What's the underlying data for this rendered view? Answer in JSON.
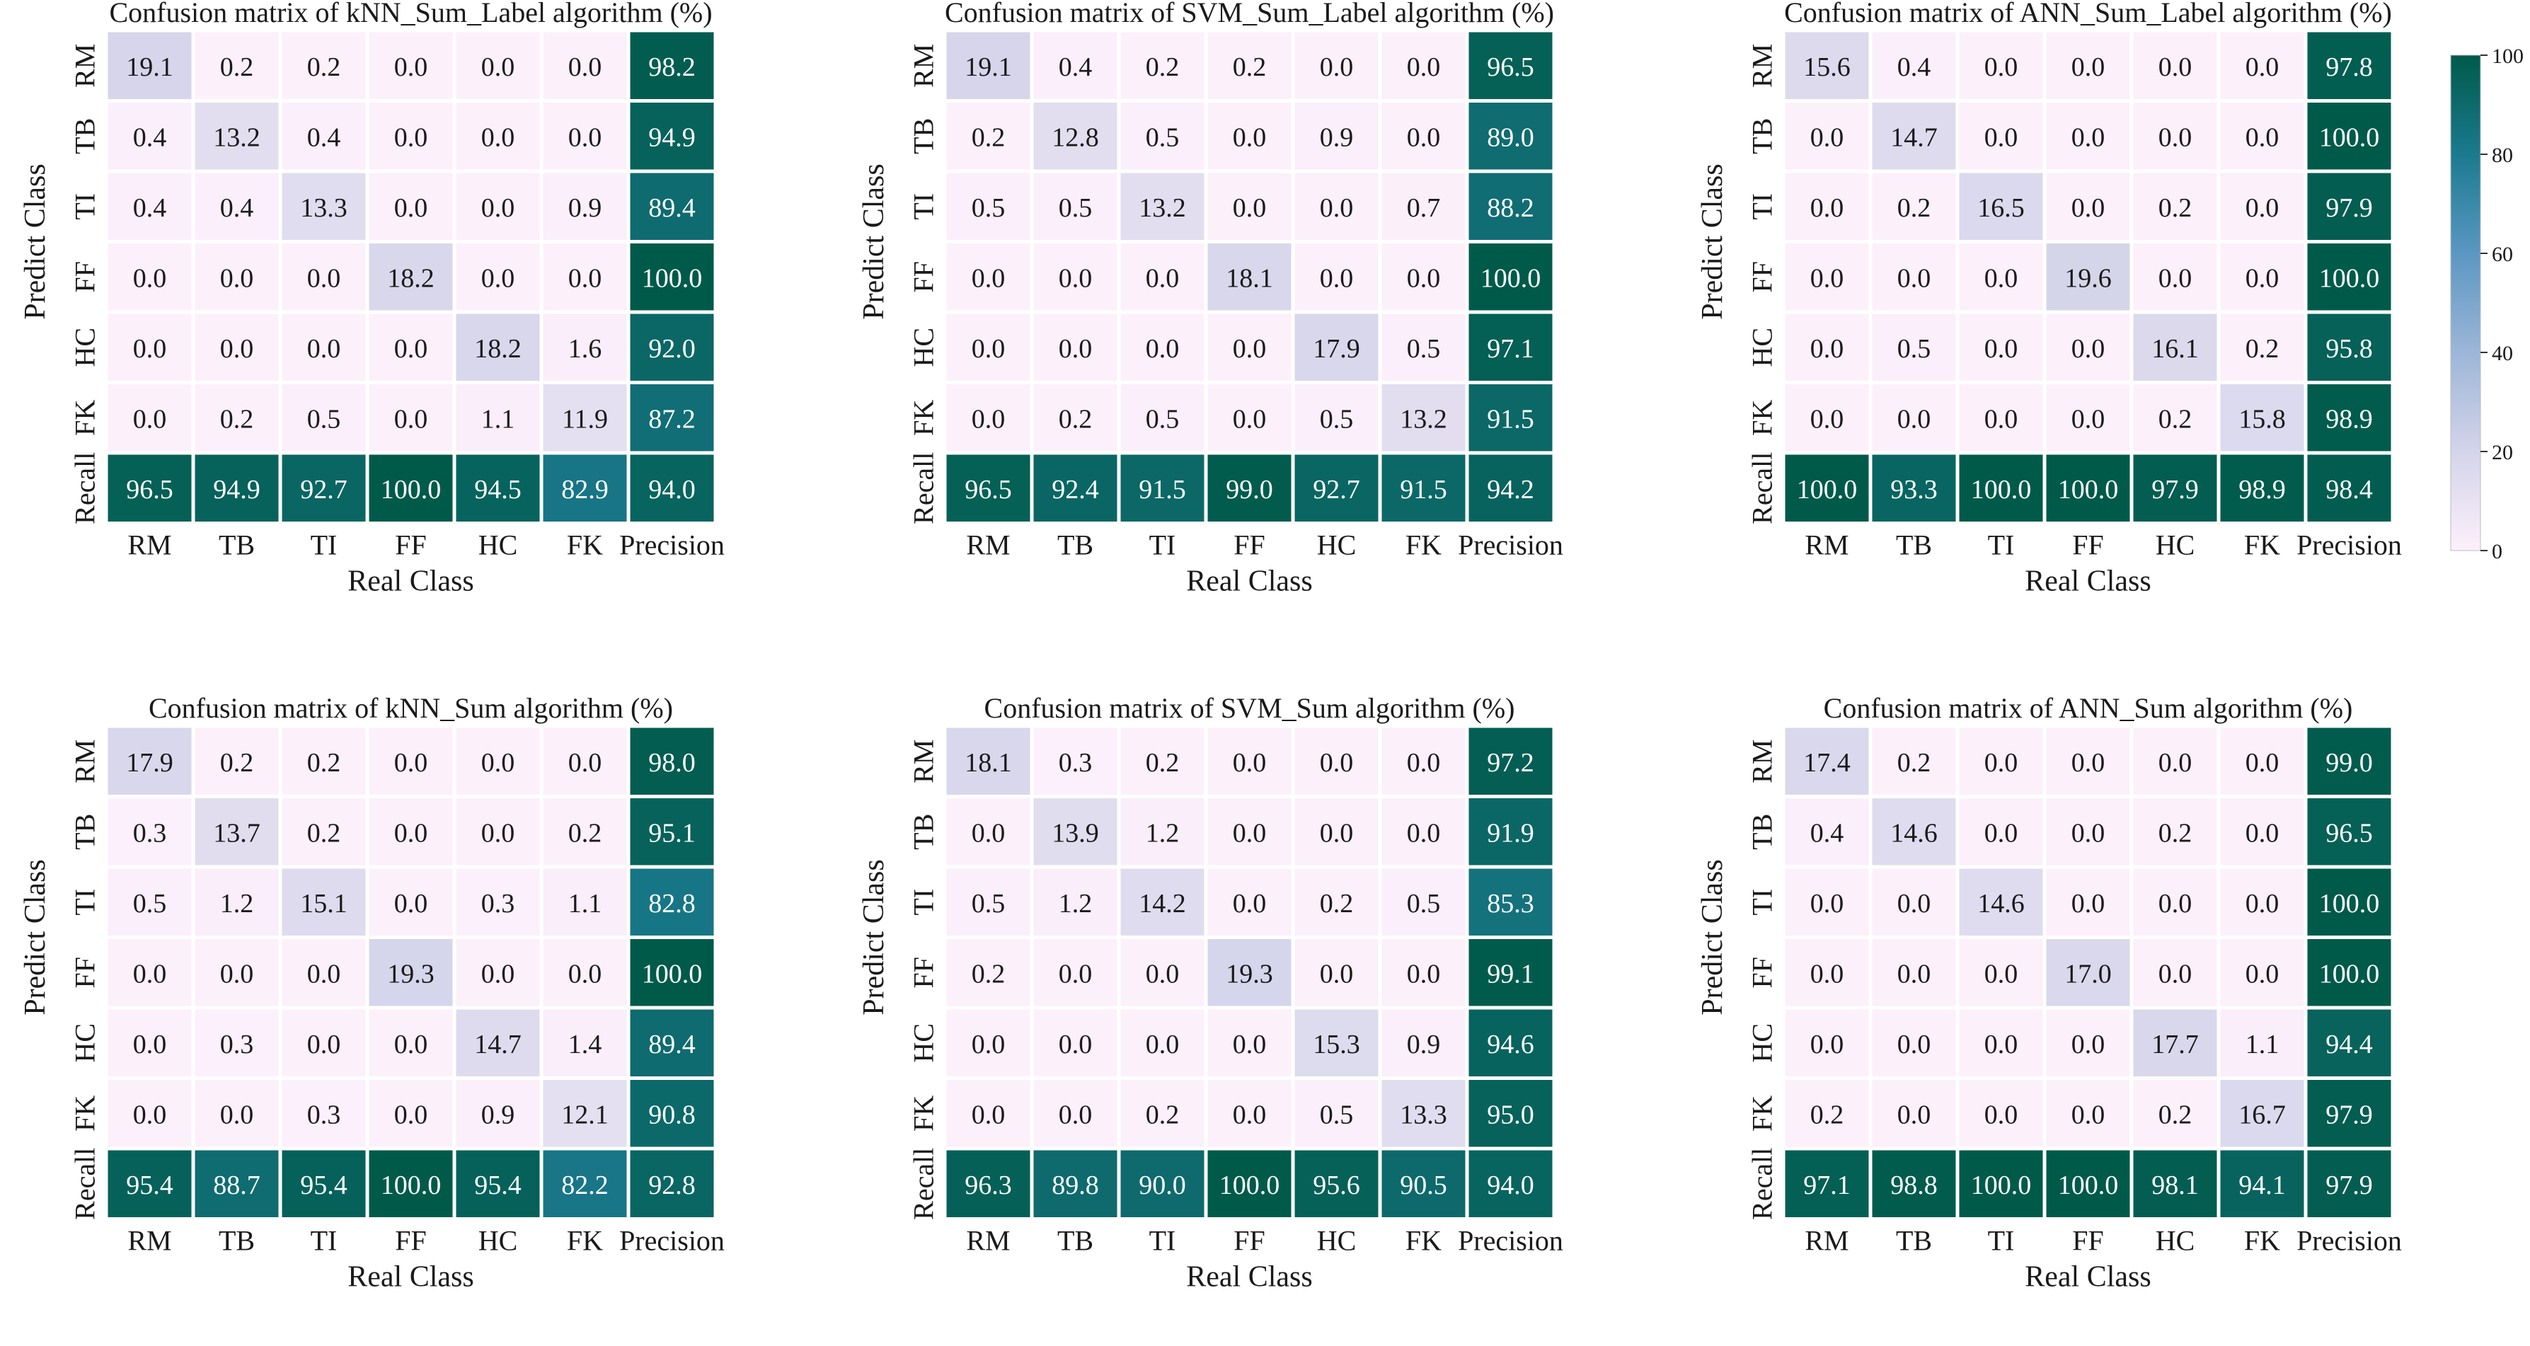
{
  "chart_data": [
    {
      "type": "heatmap",
      "title": "Confusion matrix of kNN_Sum_Label algorithm (%)",
      "xlabel": "Real Class",
      "ylabel": "Predict Class",
      "x_categories": [
        "RM",
        "TB",
        "TI",
        "FF",
        "HC",
        "FK",
        "Precision"
      ],
      "y_categories": [
        "RM",
        "TB",
        "TI",
        "FF",
        "HC",
        "FK",
        "Recall"
      ],
      "values": [
        [
          "19.1",
          "0.2",
          "0.2",
          "0.0",
          "0.0",
          "0.0",
          "98.2"
        ],
        [
          "0.4",
          "13.2",
          "0.4",
          "0.0",
          "0.0",
          "0.0",
          "94.9"
        ],
        [
          "0.4",
          "0.4",
          "13.3",
          "0.0",
          "0.0",
          "0.9",
          "89.4"
        ],
        [
          "0.0",
          "0.0",
          "0.0",
          "18.2",
          "0.0",
          "0.0",
          "100.0"
        ],
        [
          "0.0",
          "0.0",
          "0.0",
          "0.0",
          "18.2",
          "1.6",
          "92.0"
        ],
        [
          "0.0",
          "0.2",
          "0.5",
          "0.0",
          "1.1",
          "11.9",
          "87.2"
        ],
        [
          "96.5",
          "94.9",
          "92.7",
          "100.0",
          "94.5",
          "82.9",
          "94.0"
        ]
      ]
    },
    {
      "type": "heatmap",
      "title": "Confusion matrix of SVM_Sum_Label algorithm (%)",
      "xlabel": "Real Class",
      "ylabel": "Predict Class",
      "x_categories": [
        "RM",
        "TB",
        "TI",
        "FF",
        "HC",
        "FK",
        "Precision"
      ],
      "y_categories": [
        "RM",
        "TB",
        "TI",
        "FF",
        "HC",
        "FK",
        "Recall"
      ],
      "values": [
        [
          "19.1",
          "0.4",
          "0.2",
          "0.2",
          "0.0",
          "0.0",
          "96.5"
        ],
        [
          "0.2",
          "12.8",
          "0.5",
          "0.0",
          "0.9",
          "0.0",
          "89.0"
        ],
        [
          "0.5",
          "0.5",
          "13.2",
          "0.0",
          "0.0",
          "0.7",
          "88.2"
        ],
        [
          "0.0",
          "0.0",
          "0.0",
          "18.1",
          "0.0",
          "0.0",
          "100.0"
        ],
        [
          "0.0",
          "0.0",
          "0.0",
          "0.0",
          "17.9",
          "0.5",
          "97.1"
        ],
        [
          "0.0",
          "0.2",
          "0.5",
          "0.0",
          "0.5",
          "13.2",
          "91.5"
        ],
        [
          "96.5",
          "92.4",
          "91.5",
          "99.0",
          "92.7",
          "91.5",
          "94.2"
        ]
      ]
    },
    {
      "type": "heatmap",
      "title": "Confusion matrix of ANN_Sum_Label algorithm (%)",
      "xlabel": "Real Class",
      "ylabel": "Predict Class",
      "x_categories": [
        "RM",
        "TB",
        "TI",
        "FF",
        "HC",
        "FK",
        "Precision"
      ],
      "y_categories": [
        "RM",
        "TB",
        "TI",
        "FF",
        "HC",
        "FK",
        "Recall"
      ],
      "values": [
        [
          "15.6",
          "0.4",
          "0.0",
          "0.0",
          "0.0",
          "0.0",
          "97.8"
        ],
        [
          "0.0",
          "14.7",
          "0.0",
          "0.0",
          "0.0",
          "0.0",
          "100.0"
        ],
        [
          "0.0",
          "0.2",
          "16.5",
          "0.0",
          "0.2",
          "0.0",
          "97.9"
        ],
        [
          "0.0",
          "0.0",
          "0.0",
          "19.6",
          "0.0",
          "0.0",
          "100.0"
        ],
        [
          "0.0",
          "0.5",
          "0.0",
          "0.0",
          "16.1",
          "0.2",
          "95.8"
        ],
        [
          "0.0",
          "0.0",
          "0.0",
          "0.0",
          "0.2",
          "15.8",
          "98.9"
        ],
        [
          "100.0",
          "93.3",
          "100.0",
          "100.0",
          "97.9",
          "98.9",
          "98.4"
        ]
      ]
    },
    {
      "type": "heatmap",
      "title": "Confusion matrix of kNN_Sum algorithm (%)",
      "xlabel": "Real Class",
      "ylabel": "Predict Class",
      "x_categories": [
        "RM",
        "TB",
        "TI",
        "FF",
        "HC",
        "FK",
        "Precision"
      ],
      "y_categories": [
        "RM",
        "TB",
        "TI",
        "FF",
        "HC",
        "FK",
        "Recall"
      ],
      "values": [
        [
          "17.9",
          "0.2",
          "0.2",
          "0.0",
          "0.0",
          "0.0",
          "98.0"
        ],
        [
          "0.3",
          "13.7",
          "0.2",
          "0.0",
          "0.0",
          "0.2",
          "95.1"
        ],
        [
          "0.5",
          "1.2",
          "15.1",
          "0.0",
          "0.3",
          "1.1",
          "82.8"
        ],
        [
          "0.0",
          "0.0",
          "0.0",
          "19.3",
          "0.0",
          "0.0",
          "100.0"
        ],
        [
          "0.0",
          "0.3",
          "0.0",
          "0.0",
          "14.7",
          "1.4",
          "89.4"
        ],
        [
          "0.0",
          "0.0",
          "0.3",
          "0.0",
          "0.9",
          "12.1",
          "90.8"
        ],
        [
          "95.4",
          "88.7",
          "95.4",
          "100.0",
          "95.4",
          "82.2",
          "92.8"
        ]
      ]
    },
    {
      "type": "heatmap",
      "title": "Confusion matrix of SVM_Sum algorithm (%)",
      "xlabel": "Real Class",
      "ylabel": "Predict Class",
      "x_categories": [
        "RM",
        "TB",
        "TI",
        "FF",
        "HC",
        "FK",
        "Precision"
      ],
      "y_categories": [
        "RM",
        "TB",
        "TI",
        "FF",
        "HC",
        "FK",
        "Recall"
      ],
      "values": [
        [
          "18.1",
          "0.3",
          "0.2",
          "0.0",
          "0.0",
          "0.0",
          "97.2"
        ],
        [
          "0.0",
          "13.9",
          "1.2",
          "0.0",
          "0.0",
          "0.0",
          "91.9"
        ],
        [
          "0.5",
          "1.2",
          "14.2",
          "0.0",
          "0.2",
          "0.5",
          "85.3"
        ],
        [
          "0.2",
          "0.0",
          "0.0",
          "19.3",
          "0.0",
          "0.0",
          "99.1"
        ],
        [
          "0.0",
          "0.0",
          "0.0",
          "0.0",
          "15.3",
          "0.9",
          "94.6"
        ],
        [
          "0.0",
          "0.0",
          "0.2",
          "0.0",
          "0.5",
          "13.3",
          "95.0"
        ],
        [
          "96.3",
          "89.8",
          "90.0",
          "100.0",
          "95.6",
          "90.5",
          "94.0"
        ]
      ]
    },
    {
      "type": "heatmap",
      "title": "Confusion matrix of ANN_Sum algorithm (%)",
      "xlabel": "Real Class",
      "ylabel": "Predict Class",
      "x_categories": [
        "RM",
        "TB",
        "TI",
        "FF",
        "HC",
        "FK",
        "Precision"
      ],
      "y_categories": [
        "RM",
        "TB",
        "TI",
        "FF",
        "HC",
        "FK",
        "Recall"
      ],
      "values": [
        [
          "17.4",
          "0.2",
          "0.0",
          "0.0",
          "0.0",
          "0.0",
          "99.0"
        ],
        [
          "0.4",
          "14.6",
          "0.0",
          "0.0",
          "0.2",
          "0.0",
          "96.5"
        ],
        [
          "0.0",
          "0.0",
          "14.6",
          "0.0",
          "0.0",
          "0.0",
          "100.0"
        ],
        [
          "0.0",
          "0.0",
          "0.0",
          "17.0",
          "0.0",
          "0.0",
          "100.0"
        ],
        [
          "0.0",
          "0.0",
          "0.0",
          "0.0",
          "17.7",
          "1.1",
          "94.4"
        ],
        [
          "0.2",
          "0.0",
          "0.0",
          "0.0",
          "0.2",
          "16.7",
          "97.9"
        ],
        [
          "97.1",
          "98.8",
          "100.0",
          "100.0",
          "98.1",
          "94.1",
          "97.9"
        ]
      ]
    }
  ],
  "colorbar": {
    "range": [
      0,
      100
    ],
    "ticks": [
      "0",
      "20",
      "40",
      "60",
      "80",
      "100"
    ],
    "colors": [
      "#fcf0fb",
      "#d4d4ea",
      "#9cb6d8",
      "#5b97c2",
      "#1b7a8f",
      "#005a4a"
    ]
  }
}
